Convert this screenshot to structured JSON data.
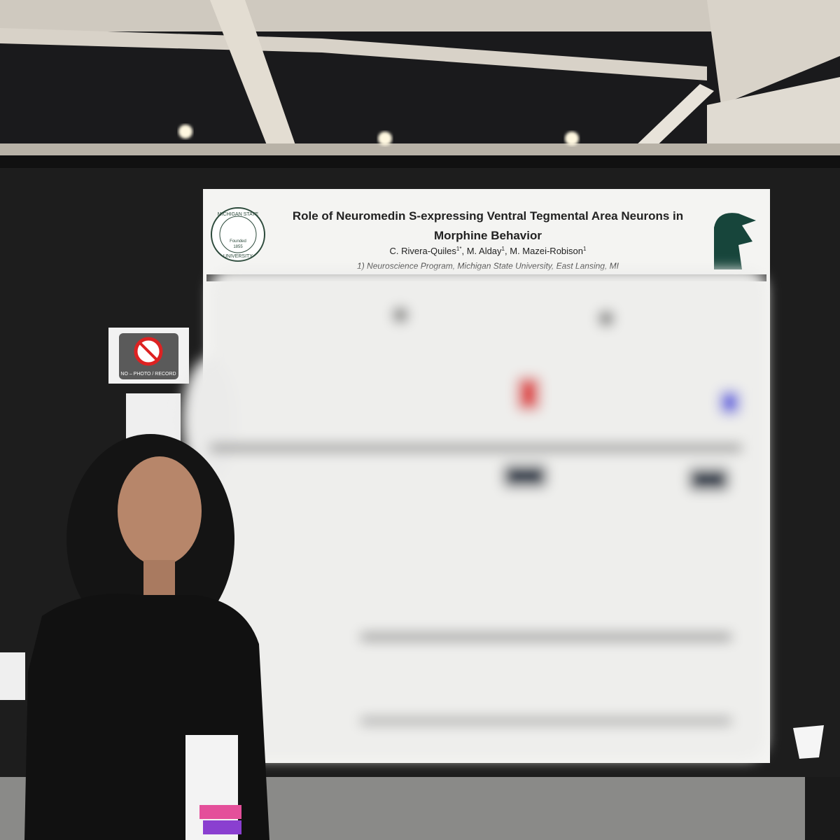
{
  "poster": {
    "title_lines": [
      "Role of Neuromedin S-expressing Ventral Tegmental Area Neurons in",
      "Morphine Behavior"
    ],
    "authors": [
      {
        "name": "C. Rivera-Quiles",
        "affiliation": "1*",
        "separator": ","
      },
      {
        "name": "M. Alday",
        "affiliation": "1",
        "separator": ","
      },
      {
        "name": "M. Mazei-Robison",
        "affiliation": "1",
        "separator": ""
      }
    ],
    "affiliation": "1) Neuroscience Program, Michigan State University, East Lansing, MI",
    "seal": {
      "top": "MICHIGAN STATE",
      "bottom": "UNIVERSITY",
      "founded": "Founded",
      "year": "1855"
    }
  },
  "sign": {
    "text": "NO – PHOTO / RECORD"
  }
}
